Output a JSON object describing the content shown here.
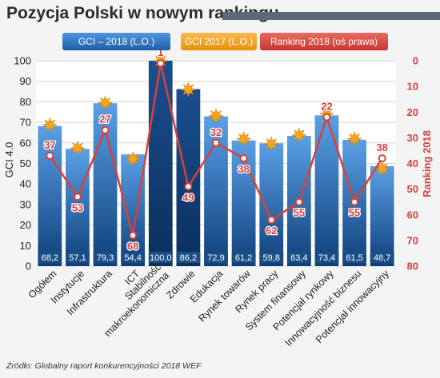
{
  "title": "Pozycja Polski w nowym rankingu",
  "source": "Źródło: Globalny raport konkurencyjności 2018 WEF",
  "colors": {
    "bar_top": "#4a90d9",
    "bar_bottom": "#0d3f7c",
    "bar_highlight": "#1f5e9e",
    "star": "#f7a41d",
    "ranking": "#d9403b",
    "ranking_text": "#d9403b",
    "label_bg": "#1a4e86",
    "legend_blue": "#2b72c2"
  },
  "chart_data": {
    "type": "bar",
    "categories": [
      "Ogółem",
      "Instytucje",
      "Infrastruktura",
      "ICT",
      "Stabilność makroekonomiczna",
      "Zdrowie",
      "Edukacja",
      "Rynek towarów",
      "Rynek pracy",
      "System finansowy",
      "Potencjał rynkowy",
      "Innowacyjność biznesu",
      "Potencjał innowacyjny"
    ],
    "category_lines": [
      [
        "Ogółem"
      ],
      [
        "Instytucje"
      ],
      [
        "Infrastruktura"
      ],
      [
        "ICT"
      ],
      [
        "Stabilność",
        "makroekonomiczna"
      ],
      [
        "Zdrowie"
      ],
      [
        "Edukacja"
      ],
      [
        "Rynek towarów"
      ],
      [
        "Rynek pracy"
      ],
      [
        "System finansowy"
      ],
      [
        "Potencjał rynkowy"
      ],
      [
        "Innowacyjność biznesu"
      ],
      [
        "Potencjał innowacyjny"
      ]
    ],
    "series": [
      {
        "name": "GCI – 2018 (L.O.)",
        "kind": "bar",
        "values": [
          68.2,
          57.1,
          79.3,
          54.4,
          100.0,
          86.2,
          72.9,
          61.2,
          59.8,
          63.4,
          73.4,
          61.5,
          48.7
        ],
        "labels": [
          "68,2",
          "57,1",
          "79,3",
          "54,4",
          "100,0",
          "86,2",
          "72,9",
          "61,2",
          "59,8",
          "63,4",
          "73,4",
          "61,5",
          "48,7"
        ]
      },
      {
        "name": "GCI 2017 (L.O.)",
        "kind": "marker",
        "values": [
          68.8,
          57.5,
          79.5,
          52.2,
          100.0,
          86.0,
          73.2,
          62.0,
          59.6,
          63.8,
          74.2,
          62.0,
          47.5
        ]
      },
      {
        "name": "Ranking 2018 (oś prawa)",
        "kind": "line",
        "values": [
          37,
          53,
          27,
          68,
          1,
          49,
          32,
          38,
          62,
          55,
          22,
          55,
          38
        ],
        "labels": [
          "37",
          "53",
          "27",
          "68",
          "1",
          "49",
          "32",
          "38",
          "62",
          "55",
          "22",
          "55",
          "38"
        ]
      }
    ],
    "ylabel_left": "GCI 4.0",
    "ylabel_right": "Ranking 2018",
    "ylim_left": [
      0,
      100
    ],
    "ylim_right": [
      0,
      80
    ],
    "right_axis_inverted": true,
    "yticks_left": [
      "0",
      "10",
      "20",
      "30",
      "40",
      "50",
      "60",
      "70",
      "80",
      "90",
      "100"
    ],
    "yticks_right": [
      "0",
      "10",
      "20",
      "30",
      "40",
      "50",
      "60",
      "70",
      "80"
    ],
    "grid": true,
    "legend_position": "top"
  }
}
